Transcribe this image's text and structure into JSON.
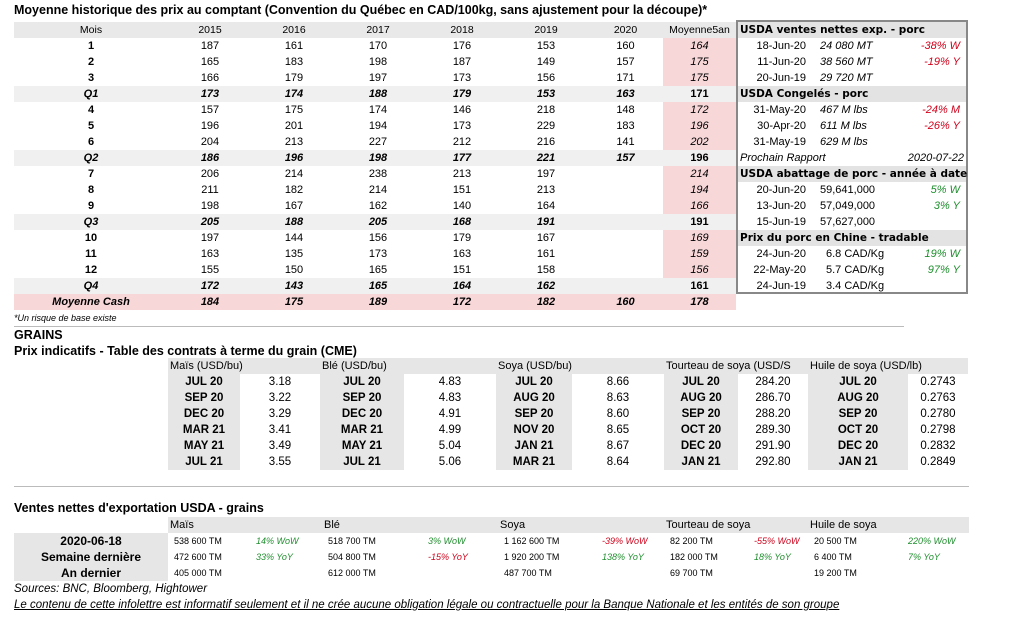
{
  "hist": {
    "title": "Moyenne historique des prix au comptant (Convention du Québec en CAD/100kg, sans ajustement pour la découpe)*",
    "headers": [
      "Mois",
      "2015",
      "2016",
      "2017",
      "2018",
      "2019",
      "2020",
      "Moyenne5an"
    ],
    "rows": [
      {
        "type": "m",
        "cells": [
          "1",
          "187",
          "161",
          "170",
          "176",
          "153",
          "160",
          "164"
        ]
      },
      {
        "type": "m",
        "cells": [
          "2",
          "165",
          "183",
          "198",
          "187",
          "149",
          "157",
          "175"
        ]
      },
      {
        "type": "m",
        "cells": [
          "3",
          "166",
          "179",
          "197",
          "173",
          "156",
          "171",
          "175"
        ]
      },
      {
        "type": "q",
        "cells": [
          "Q1",
          "173",
          "174",
          "188",
          "179",
          "153",
          "163",
          "171"
        ]
      },
      {
        "type": "m",
        "cells": [
          "4",
          "157",
          "175",
          "174",
          "146",
          "218",
          "148",
          "172"
        ]
      },
      {
        "type": "m",
        "cells": [
          "5",
          "196",
          "201",
          "194",
          "173",
          "229",
          "183",
          "196"
        ]
      },
      {
        "type": "m",
        "cells": [
          "6",
          "204",
          "213",
          "227",
          "212",
          "216",
          "141",
          "202"
        ]
      },
      {
        "type": "q",
        "cells": [
          "Q2",
          "186",
          "196",
          "198",
          "177",
          "221",
          "157",
          "196"
        ]
      },
      {
        "type": "m",
        "cells": [
          "7",
          "206",
          "214",
          "238",
          "213",
          "197",
          "",
          "214"
        ]
      },
      {
        "type": "m",
        "cells": [
          "8",
          "211",
          "182",
          "214",
          "151",
          "213",
          "",
          "194"
        ]
      },
      {
        "type": "m",
        "cells": [
          "9",
          "198",
          "167",
          "162",
          "140",
          "164",
          "",
          "166"
        ]
      },
      {
        "type": "q",
        "cells": [
          "Q3",
          "205",
          "188",
          "205",
          "168",
          "191",
          "",
          "191"
        ]
      },
      {
        "type": "m",
        "cells": [
          "10",
          "197",
          "144",
          "156",
          "179",
          "167",
          "",
          "169"
        ]
      },
      {
        "type": "m",
        "cells": [
          "11",
          "163",
          "135",
          "173",
          "163",
          "161",
          "",
          "159"
        ]
      },
      {
        "type": "m",
        "cells": [
          "12",
          "155",
          "150",
          "165",
          "151",
          "158",
          "",
          "156"
        ]
      },
      {
        "type": "q",
        "cells": [
          "Q4",
          "172",
          "143",
          "165",
          "164",
          "162",
          "",
          "161"
        ]
      },
      {
        "type": "cash",
        "cells": [
          "Moyenne Cash",
          "184",
          "175",
          "189",
          "172",
          "182",
          "160",
          "178"
        ]
      }
    ],
    "note": "*Un risque de base existe"
  },
  "usda": {
    "s1": {
      "title": "USDA ventes nettes exp. - porc",
      "rows": [
        {
          "date": "18-Jun-20",
          "val": "24 080  MT",
          "chg": "-38% W",
          "color": "red"
        },
        {
          "date": "11-Jun-20",
          "val": "38 560  MT",
          "chg": "-19% Y",
          "color": "red"
        },
        {
          "date": "20-Jun-19",
          "val": "29 720  MT",
          "chg": "",
          "color": ""
        }
      ]
    },
    "s2": {
      "title": "USDA Congelés - porc",
      "rows": [
        {
          "date": "31-May-20",
          "val": "467 M lbs",
          "chg": "-24% M",
          "color": "red"
        },
        {
          "date": "30-Apr-20",
          "val": "611 M lbs",
          "chg": "-26% Y",
          "color": "red"
        },
        {
          "date": "31-May-19",
          "val": "629 M lbs",
          "chg": "",
          "color": ""
        }
      ]
    },
    "next_label": "Prochain Rapport",
    "next_date": "2020-07-22",
    "s3": {
      "title": "USDA abattage de porc - année à date",
      "rows": [
        {
          "date": "20-Jun-20",
          "val": "59,641,000",
          "chg": "5% W",
          "color": "green"
        },
        {
          "date": "13-Jun-20",
          "val": "57,049,000",
          "chg": "3% Y",
          "color": "green"
        },
        {
          "date": "15-Jun-19",
          "val": "57,627,000",
          "chg": "",
          "color": ""
        }
      ]
    },
    "s4": {
      "title": "Prix du porc en Chine - tradable",
      "rows": [
        {
          "date": "24-Jun-20",
          "val": "6.8 CAD/Kg",
          "chg": "19% W",
          "color": "green"
        },
        {
          "date": "22-May-20",
          "val": "5.7 CAD/Kg",
          "chg": "97% Y",
          "color": "green"
        },
        {
          "date": "24-Jun-19",
          "val": "3.4 CAD/Kg",
          "chg": "",
          "color": ""
        }
      ]
    }
  },
  "grains": {
    "heading": "GRAINS",
    "subtitle": "Prix indicatifs - Table des contrats à terme du grain (CME)",
    "headers": [
      "Maïs (USD/bu)",
      "Blé (USD/bu)",
      "Soya (USD/bu)",
      "Tourteau de soya (USD/S",
      "Huile de soya (USD/lb)"
    ],
    "rows": [
      [
        "JUL 20",
        "3.18",
        "JUL 20",
        "4.83",
        "JUL 20",
        "8.66",
        "JUL 20",
        "284.20",
        "JUL 20",
        "0.2743"
      ],
      [
        "SEP 20",
        "3.22",
        "SEP 20",
        "4.83",
        "AUG 20",
        "8.63",
        "AUG 20",
        "286.70",
        "AUG 20",
        "0.2763"
      ],
      [
        "DEC 20",
        "3.29",
        "DEC 20",
        "4.91",
        "SEP 20",
        "8.60",
        "SEP 20",
        "288.20",
        "SEP 20",
        "0.2780"
      ],
      [
        "MAR 21",
        "3.41",
        "MAR 21",
        "4.99",
        "NOV 20",
        "8.65",
        "OCT 20",
        "289.30",
        "OCT 20",
        "0.2798"
      ],
      [
        "MAY 21",
        "3.49",
        "MAY 21",
        "5.04",
        "JAN 21",
        "8.67",
        "DEC 20",
        "291.90",
        "DEC 20",
        "0.2832"
      ],
      [
        "JUL 21",
        "3.55",
        "JUL 21",
        "5.06",
        "MAR 21",
        "8.64",
        "JAN 21",
        "292.80",
        "JAN 21",
        "0.2849"
      ]
    ]
  },
  "exports": {
    "title": "Ventes nettes d'exportation USDA - grains",
    "headers": [
      "Maïs",
      "Blé",
      "Soya",
      "Tourteau de soya",
      "Huile de soya"
    ],
    "rows": [
      {
        "label": "2020-06-18",
        "cells": [
          [
            "538 600 TM",
            "14% WoW",
            "green"
          ],
          [
            "518 700 TM",
            "3% WoW",
            "green"
          ],
          [
            "1 162 600 TM",
            "-39% WoW",
            "red"
          ],
          [
            "82 200 TM",
            "-55% WoW",
            "red"
          ],
          [
            "20 500 TM",
            "220% WoW",
            "green"
          ]
        ]
      },
      {
        "label": "Semaine dernière",
        "cells": [
          [
            "472 600 TM",
            "33% YoY",
            "green"
          ],
          [
            "504 800 TM",
            "-15% YoY",
            "red"
          ],
          [
            "1 920 200 TM",
            "138% YoY",
            "green"
          ],
          [
            "182 000 TM",
            "18% YoY",
            "green"
          ],
          [
            "6 400 TM",
            "7% YoY",
            "green"
          ]
        ]
      },
      {
        "label": "An dernier",
        "cells": [
          [
            "405 000 TM",
            "",
            ""
          ],
          [
            "612 000 TM",
            "",
            ""
          ],
          [
            "487 700 TM",
            "",
            ""
          ],
          [
            "69 700 TM",
            "",
            ""
          ],
          [
            "19 200 TM",
            "",
            ""
          ]
        ]
      }
    ]
  },
  "footer": {
    "sources": "Sources: BNC, Bloomberg, Hightower",
    "disclaimer": "Le contenu de cette infolettre est informatif seulement et il ne crée aucune obligation légale ou contractuelle pour la Banque Nationale et les entités de son groupe"
  }
}
